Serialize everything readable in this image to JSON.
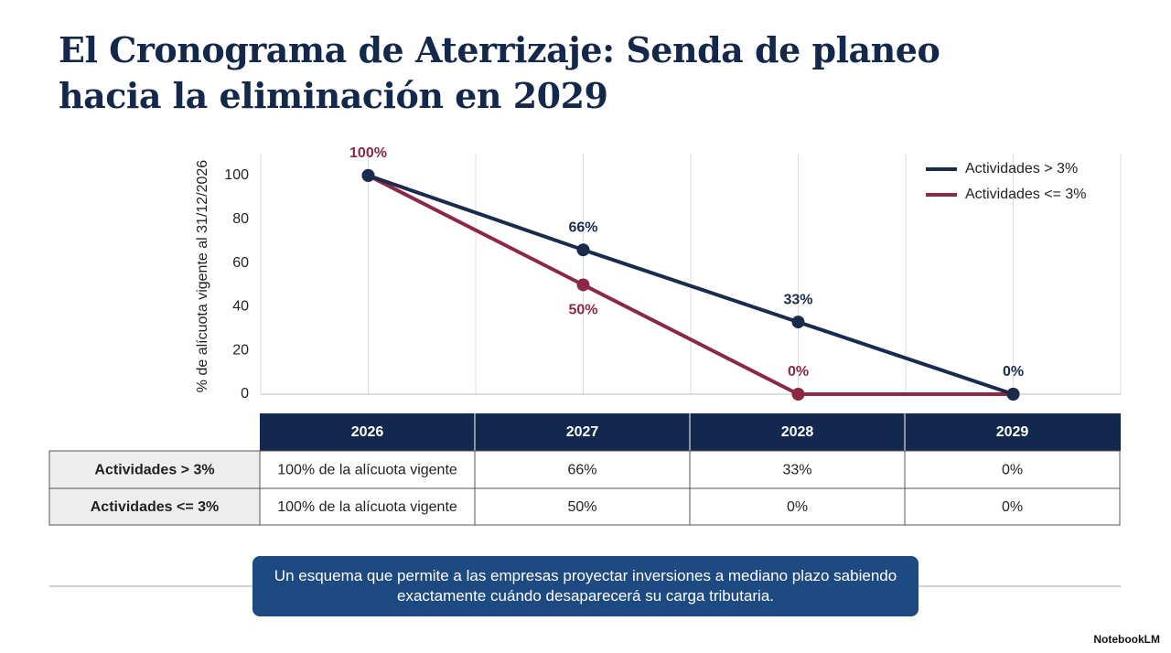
{
  "title": "El Cronograma de Aterrizaje: Senda de planeo hacia la eliminación en 2029",
  "chart_data": {
    "type": "line",
    "y_label": "% de alícuota vigente al 31/12/2026",
    "categories": [
      "2026",
      "2027",
      "2028",
      "2029"
    ],
    "series": [
      {
        "name": "Actividades > 3%",
        "color": "#1b2b4d",
        "values": [
          100,
          66,
          33,
          0
        ],
        "value_labels": [
          null,
          "66%",
          "33%",
          "0%"
        ]
      },
      {
        "name": "Actividades <= 3%",
        "color": "#8a2846",
        "values": [
          100,
          50,
          0,
          0
        ],
        "value_labels": [
          "100%",
          "50%",
          "0%",
          null
        ]
      }
    ],
    "ylim": [
      0,
      110
    ],
    "yticks": [
      0,
      20,
      40,
      60,
      80,
      100
    ],
    "grid": "x",
    "legend": "top-right"
  },
  "table": {
    "header": [
      "2026",
      "2027",
      "2028",
      "2029"
    ],
    "rows": [
      [
        "Actividades > 3%",
        "100% de la alícuota vigente",
        "66%",
        "33%",
        "0%"
      ],
      [
        "Actividades <= 3%",
        "100% de la alícuota vigente",
        "50%",
        "0%",
        "0%"
      ]
    ]
  },
  "callout": "Un esquema que permite a las empresas proyectar inversiones a mediano plazo sabiendo exactamente cuándo desaparecerá su carga tributaria.",
  "brand": "NotebookLM"
}
